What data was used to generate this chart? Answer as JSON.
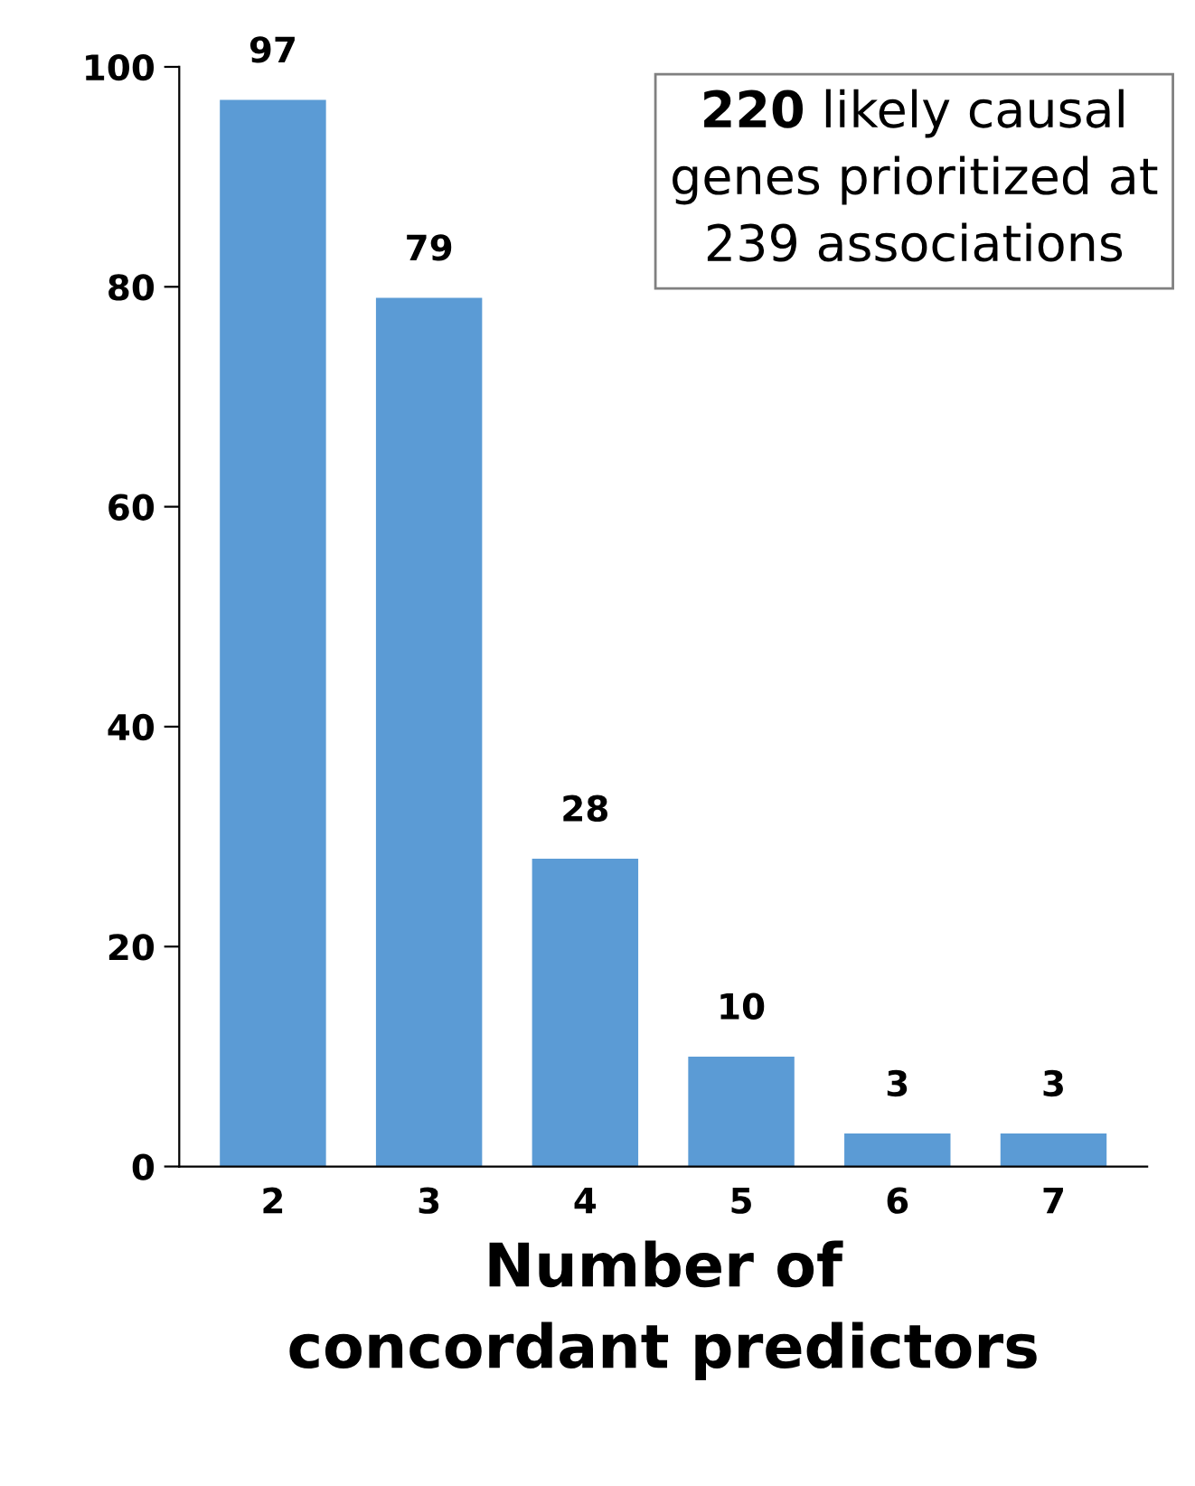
{
  "chart_data": {
    "type": "bar",
    "xlabel": "Number of\nconcordant predictors",
    "categories": [
      "2",
      "3",
      "4",
      "5",
      "6",
      "7"
    ],
    "values": [
      97,
      79,
      28,
      10,
      3,
      3
    ],
    "color": "#5b9bd5",
    "ylim": [
      0,
      100
    ],
    "yticks": [
      0,
      20,
      40,
      60,
      80,
      100
    ],
    "data_labels": true,
    "grid": false,
    "legend": false,
    "annotations": [
      "220 likely causal\ngenes prioritized at\n239 associations"
    ]
  }
}
